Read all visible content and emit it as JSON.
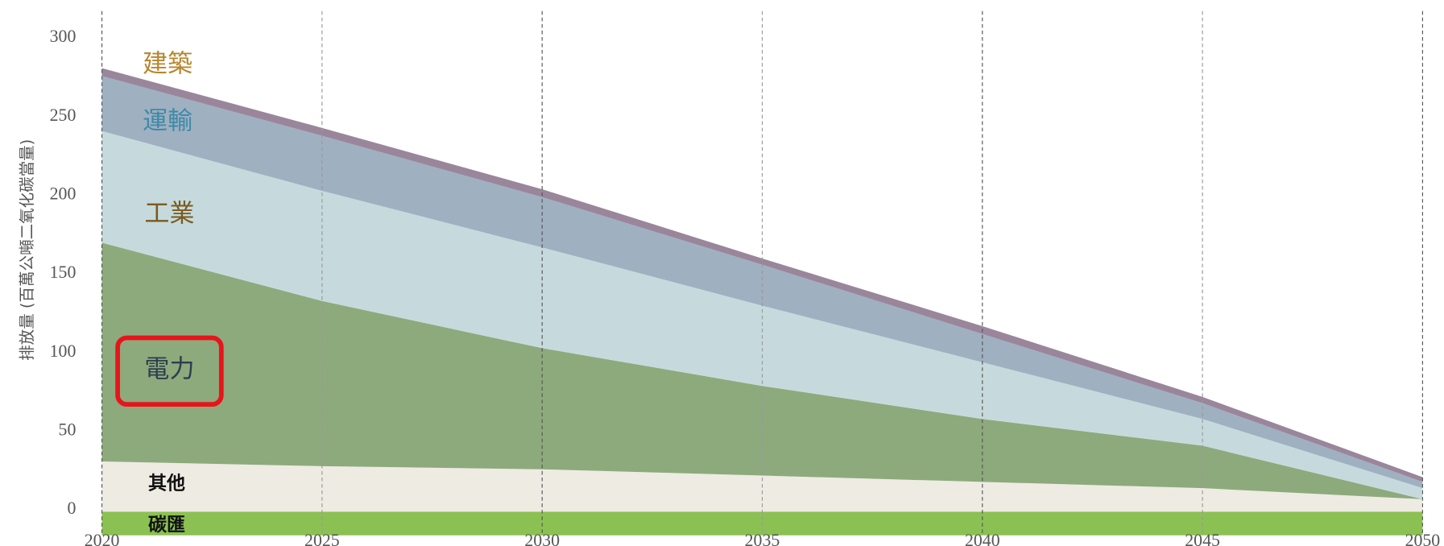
{
  "chart_data": {
    "type": "stacked_area",
    "ylabel": "排放量 (百萬公噸二氧化碳當量)",
    "x": [
      2020,
      2025,
      2030,
      2035,
      2040,
      2045,
      2050
    ],
    "xlim": [
      2020,
      2050
    ],
    "xticks": [
      2020,
      2025,
      2030,
      2035,
      2040,
      2045,
      2050
    ],
    "ylim": [
      -15,
      300
    ],
    "yticks": [
      0,
      50,
      100,
      150,
      200,
      250,
      300
    ],
    "grid": true,
    "series": [
      {
        "name": "碳匯",
        "color": "#8bc152",
        "label_color": "#111111",
        "values": [
          -15,
          -15,
          -15,
          -15,
          -15,
          -15,
          -15
        ]
      },
      {
        "name": "其他",
        "color": "#eeebe3",
        "label_color": "#111111",
        "values": [
          32,
          29,
          27,
          23,
          19,
          15,
          8
        ]
      },
      {
        "name": "電力",
        "color": "#8daa7c",
        "label_color": "#2c3e50",
        "values": [
          139,
          105,
          77,
          57,
          40,
          27,
          0
        ]
      },
      {
        "name": "工業",
        "color": "#c6dadd",
        "label_color": "#7a5a1e",
        "values": [
          71,
          70,
          64,
          51,
          36,
          17,
          7
        ]
      },
      {
        "name": "運輸",
        "color": "#9fb0c1",
        "label_color": "#3e8aa8",
        "values": [
          35,
          35,
          32,
          26,
          18,
          10,
          4
        ]
      },
      {
        "name": "建築",
        "color": "#9a869b",
        "label_color": "#b8862e",
        "values": [
          5,
          5,
          5,
          4,
          5,
          4,
          3
        ]
      }
    ]
  }
}
